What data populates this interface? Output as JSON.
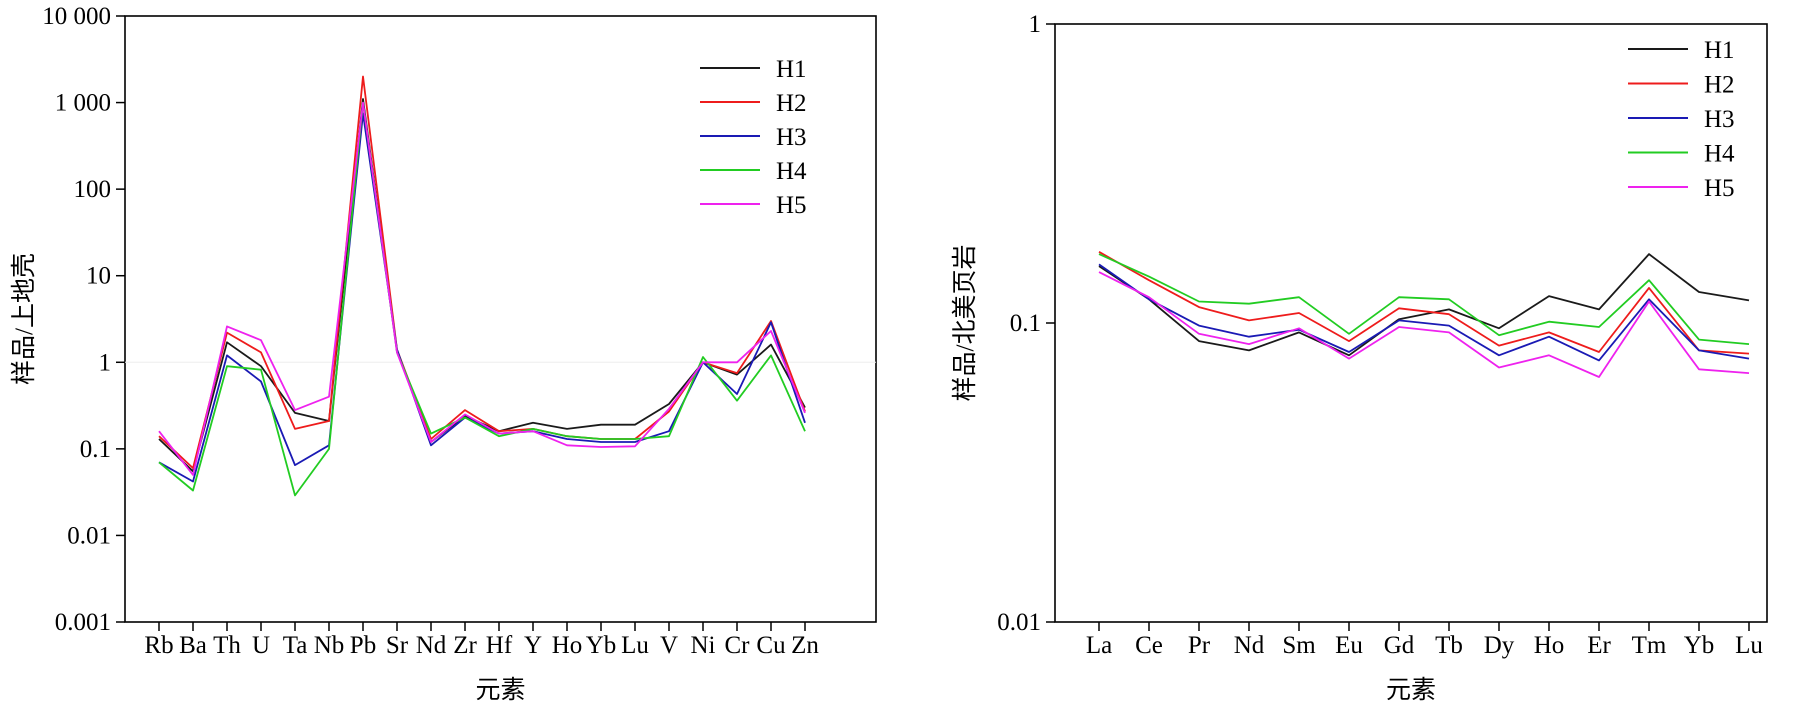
{
  "chart_data": [
    {
      "type": "line",
      "title": "",
      "xlabel": "元素",
      "ylabel": "样品/上地壳",
      "yscale": "log",
      "ylim": [
        0.001,
        10000
      ],
      "yticks": [
        0.001,
        0.01,
        0.1,
        1,
        10,
        100,
        1000,
        10000
      ],
      "ytick_labels": [
        "0.001",
        "0.01",
        "0.1",
        "1",
        "10",
        "100",
        "1 000",
        "10 000"
      ],
      "categories": [
        "Rb",
        "Ba",
        "Th",
        "U",
        "Ta",
        "Nb",
        "Pb",
        "Sr",
        "Nd",
        "Zr",
        "Hf",
        "Y",
        "Ho",
        "Yb",
        "Lu",
        "V",
        "Ni",
        "Cr",
        "Cu",
        "Zn"
      ],
      "legend_position": "top-right",
      "series": [
        {
          "name": "H1",
          "color": "#1a1a1a",
          "values": [
            0.13,
            0.055,
            1.7,
            0.9,
            0.26,
            0.21,
            1100,
            1.35,
            0.12,
            0.24,
            0.16,
            0.2,
            0.17,
            0.19,
            0.19,
            0.33,
            1.0,
            0.72,
            1.6,
            0.3
          ]
        },
        {
          "name": "H2",
          "color": "#ee1c1c",
          "values": [
            0.14,
            0.06,
            2.2,
            1.3,
            0.17,
            0.21,
            2000,
            1.4,
            0.13,
            0.28,
            0.16,
            0.17,
            0.14,
            0.13,
            0.13,
            0.27,
            1.0,
            0.75,
            3.0,
            0.27
          ]
        },
        {
          "name": "H3",
          "color": "#1a1ab4",
          "values": [
            0.07,
            0.042,
            1.2,
            0.6,
            0.065,
            0.11,
            750,
            1.4,
            0.11,
            0.23,
            0.15,
            0.16,
            0.13,
            0.12,
            0.12,
            0.16,
            1.0,
            0.43,
            2.9,
            0.2
          ]
        },
        {
          "name": "H4",
          "color": "#22cc22",
          "values": [
            0.07,
            0.033,
            0.9,
            0.82,
            0.029,
            0.1,
            1000,
            1.3,
            0.15,
            0.23,
            0.14,
            0.17,
            0.14,
            0.13,
            0.13,
            0.14,
            1.15,
            0.36,
            1.2,
            0.16
          ]
        },
        {
          "name": "H5",
          "color": "#ee22ee",
          "values": [
            0.16,
            0.05,
            2.6,
            1.8,
            0.28,
            0.4,
            1000,
            1.3,
            0.12,
            0.25,
            0.15,
            0.16,
            0.11,
            0.105,
            0.107,
            0.29,
            1.0,
            1.0,
            2.3,
            0.26
          ]
        }
      ]
    },
    {
      "type": "line",
      "title": "",
      "xlabel": "元素",
      "ylabel": "样品/北美页岩",
      "yscale": "log",
      "ylim": [
        0.01,
        1
      ],
      "yticks": [
        0.01,
        0.1,
        1
      ],
      "ytick_labels": [
        "0.01",
        "0.1",
        "1"
      ],
      "categories": [
        "La",
        "Ce",
        "Pr",
        "Nd",
        "Sm",
        "Eu",
        "Gd",
        "Tb",
        "Dy",
        "Ho",
        "Er",
        "Tm",
        "Yb",
        "Lu"
      ],
      "legend_position": "top-right",
      "series": [
        {
          "name": "H1",
          "color": "#1a1a1a",
          "values": [
            0.155,
            0.12,
            0.087,
            0.081,
            0.093,
            0.078,
            0.103,
            0.111,
            0.096,
            0.123,
            0.111,
            0.17,
            0.127,
            0.119
          ]
        },
        {
          "name": "H2",
          "color": "#ee1c1c",
          "values": [
            0.173,
            0.139,
            0.113,
            0.102,
            0.108,
            0.087,
            0.112,
            0.107,
            0.084,
            0.093,
            0.08,
            0.131,
            0.081,
            0.079
          ]
        },
        {
          "name": "H3",
          "color": "#1a1ab4",
          "values": [
            0.157,
            0.12,
            0.098,
            0.09,
            0.095,
            0.08,
            0.102,
            0.098,
            0.078,
            0.09,
            0.075,
            0.12,
            0.081,
            0.076
          ]
        },
        {
          "name": "H4",
          "color": "#22cc22",
          "values": [
            0.17,
            0.143,
            0.118,
            0.116,
            0.122,
            0.092,
            0.122,
            0.12,
            0.091,
            0.101,
            0.097,
            0.139,
            0.088,
            0.085
          ]
        },
        {
          "name": "H5",
          "color": "#ee22ee",
          "values": [
            0.148,
            0.122,
            0.092,
            0.085,
            0.096,
            0.076,
            0.097,
            0.093,
            0.071,
            0.078,
            0.066,
            0.118,
            0.07,
            0.068
          ]
        }
      ]
    }
  ]
}
